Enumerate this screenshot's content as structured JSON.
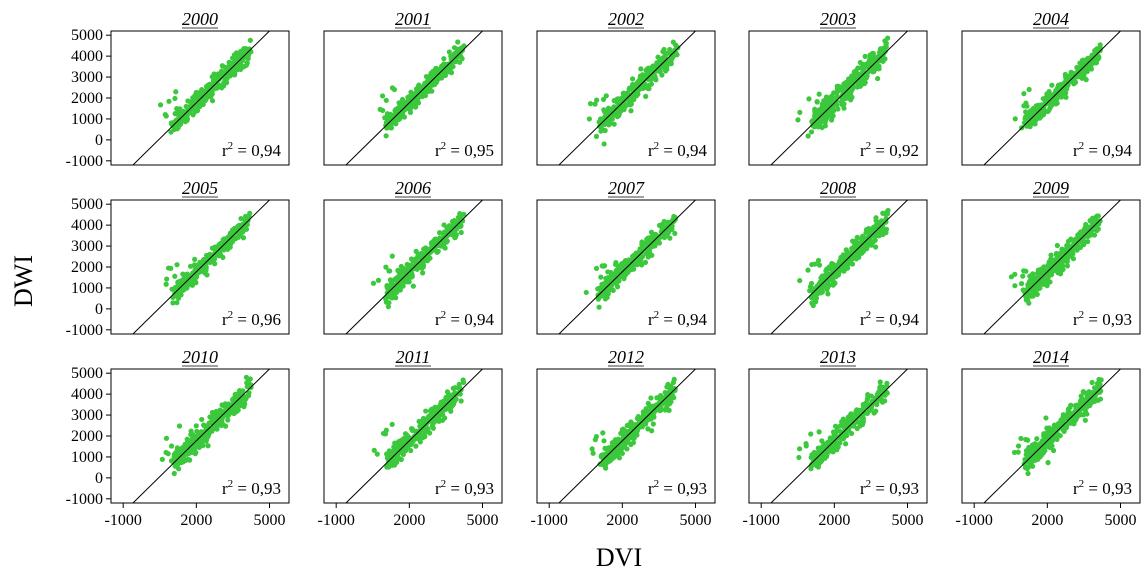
{
  "figure": {
    "xlabel": "DVI",
    "ylabel": "DWI",
    "colors": {
      "points": "#3CC83C",
      "fit_line": "#000000",
      "frame": "#000000"
    }
  },
  "chart_data": {
    "type": "scatter",
    "layout": "small-multiples 3 rows x 5 columns",
    "xlabel": "DVI",
    "ylabel": "DWI",
    "xlim": [
      -1500,
      5800
    ],
    "ylim": [
      -1200,
      5200
    ],
    "xticks": [
      -1000,
      2000,
      5000
    ],
    "yticks": [
      -1000,
      0,
      1000,
      2000,
      3000,
      4000,
      5000
    ],
    "reference_line": {
      "from": [
        -600,
        -1200
      ],
      "to": [
        5000,
        5200
      ]
    },
    "panels": [
      {
        "title": "2000",
        "r2": 0.94,
        "r2_text": "0,94",
        "spread": 240
      },
      {
        "title": "2001",
        "r2": 0.95,
        "r2_text": "0,95",
        "spread": 220
      },
      {
        "title": "2002",
        "r2": 0.94,
        "r2_text": "0,94",
        "spread": 260
      },
      {
        "title": "2003",
        "r2": 0.92,
        "r2_text": "0,92",
        "spread": 300
      },
      {
        "title": "2004",
        "r2": 0.94,
        "r2_text": "0,94",
        "spread": 240
      },
      {
        "title": "2005",
        "r2": 0.96,
        "r2_text": "0,96",
        "spread": 200
      },
      {
        "title": "2006",
        "r2": 0.94,
        "r2_text": "0,94",
        "spread": 240
      },
      {
        "title": "2007",
        "r2": 0.94,
        "r2_text": "0,94",
        "spread": 250
      },
      {
        "title": "2008",
        "r2": 0.94,
        "r2_text": "0,94",
        "spread": 260
      },
      {
        "title": "2009",
        "r2": 0.93,
        "r2_text": "0,93",
        "spread": 270
      },
      {
        "title": "2010",
        "r2": 0.93,
        "r2_text": "0,93",
        "spread": 260
      },
      {
        "title": "2011",
        "r2": 0.93,
        "r2_text": "0,93",
        "spread": 260
      },
      {
        "title": "2012",
        "r2": 0.93,
        "r2_text": "0,93",
        "spread": 270
      },
      {
        "title": "2013",
        "r2": 0.93,
        "r2_text": "0,93",
        "spread": 260
      },
      {
        "title": "2014",
        "r2": 0.93,
        "r2_text": "0,93",
        "spread": 280
      }
    ]
  }
}
